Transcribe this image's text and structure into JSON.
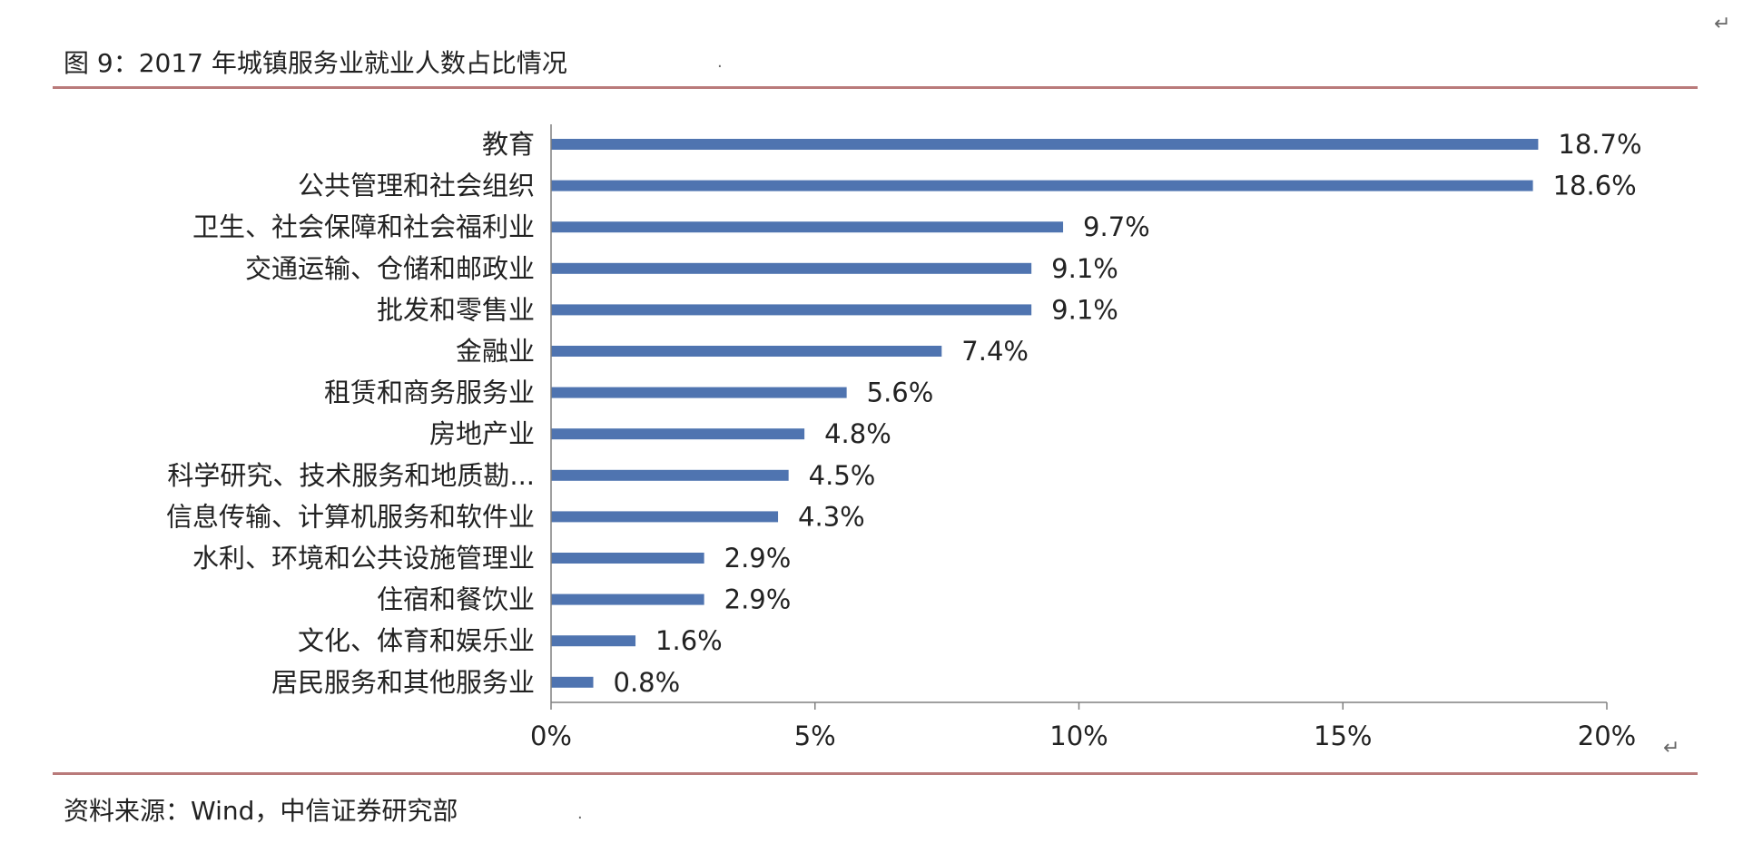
{
  "title": "图 9：2017 年城镇服务业就业人数占比情况",
  "source": "资料来源：Wind，中信证券研究部",
  "marks": {
    "return_symbol": "↵",
    "dot": "."
  },
  "colors": {
    "bar": "#4f74b0",
    "rule": "#b97a7a",
    "axis": "#808080"
  },
  "chart_data": {
    "type": "bar",
    "orientation": "horizontal",
    "categories": [
      "教育",
      "公共管理和社会组织",
      "卫生、社会保障和社会福利业",
      "交通运输、仓储和邮政业",
      "批发和零售业",
      "金融业",
      "租赁和商务服务业",
      "房地产业",
      "科学研究、技术服务和地质勘...",
      "信息传输、计算机服务和软件业",
      "水利、环境和公共设施管理业",
      "住宿和餐饮业",
      "文化、体育和娱乐业",
      "居民服务和其他服务业"
    ],
    "values": [
      18.7,
      18.6,
      9.7,
      9.1,
      9.1,
      7.4,
      5.6,
      4.8,
      4.5,
      4.3,
      2.9,
      2.9,
      1.6,
      0.8
    ],
    "value_labels": [
      "18.7%",
      "18.6%",
      "9.7%",
      "9.1%",
      "9.1%",
      "7.4%",
      "5.6%",
      "4.8%",
      "4.5%",
      "4.3%",
      "2.9%",
      "2.9%",
      "1.6%",
      "0.8%"
    ],
    "xlim": [
      0,
      20
    ],
    "xticks": [
      0,
      5,
      10,
      15,
      20
    ],
    "xtick_labels": [
      "0%",
      "5%",
      "10%",
      "15%",
      "20%"
    ],
    "grid": false,
    "legend": "none"
  }
}
